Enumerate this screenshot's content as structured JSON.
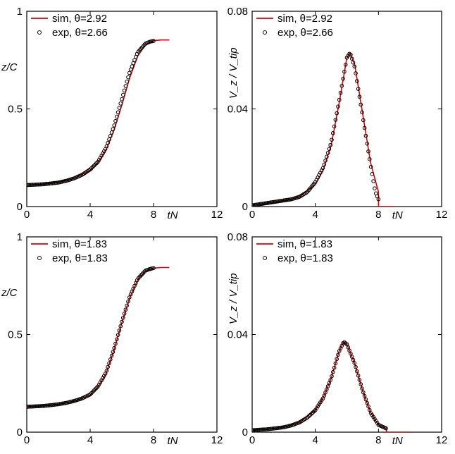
{
  "chart_data": [
    {
      "type": "line",
      "panel": "top-left",
      "xlabel": "tN",
      "ylabel": "z/C",
      "xlim": [
        0,
        12
      ],
      "ylim": [
        0,
        1
      ],
      "xticks": [
        "0",
        "4",
        "8",
        "12"
      ],
      "yticks": [
        "0",
        "0.5",
        "1"
      ],
      "legend_position": "top-left",
      "series": [
        {
          "name": "sim, θ=2.92",
          "style": "line",
          "color": "#e00000",
          "x": [
            0,
            1,
            2,
            3,
            4,
            4.5,
            5,
            5.5,
            6,
            6.5,
            7,
            7.5,
            8,
            8.5,
            9
          ],
          "y": [
            0.11,
            0.114,
            0.125,
            0.145,
            0.185,
            0.225,
            0.29,
            0.39,
            0.52,
            0.66,
            0.77,
            0.83,
            0.85,
            0.853,
            0.853
          ]
        },
        {
          "name": "exp, θ=2.66",
          "style": "markers",
          "color": "#000000",
          "x": [
            0,
            0.5,
            1,
            1.5,
            2,
            2.5,
            3,
            3.5,
            4,
            4.5,
            5,
            5.5,
            6,
            6.5,
            7,
            7.5,
            7.8,
            8
          ],
          "y": [
            0.11,
            0.112,
            0.114,
            0.118,
            0.123,
            0.132,
            0.145,
            0.163,
            0.19,
            0.23,
            0.3,
            0.41,
            0.55,
            0.69,
            0.79,
            0.835,
            0.845,
            0.848
          ]
        }
      ]
    },
    {
      "type": "line",
      "panel": "top-right",
      "xlabel": "tN",
      "ylabel": "V_z / V_tip",
      "xlim": [
        0,
        12
      ],
      "ylim": [
        0,
        0.08
      ],
      "xticks": [
        "0",
        "4",
        "8",
        "12"
      ],
      "yticks": [
        "0",
        "0.04",
        "0.08"
      ],
      "legend_position": "top-left",
      "series": [
        {
          "name": "sim, θ=2.92",
          "style": "line",
          "color": "#e00000",
          "x": [
            0,
            1,
            2,
            3,
            4,
            4.5,
            5,
            5.5,
            6,
            6.2,
            6.5,
            7,
            7.5,
            8,
            8.01,
            9
          ],
          "y": [
            0.0005,
            0.001,
            0.002,
            0.004,
            0.009,
            0.015,
            0.025,
            0.042,
            0.061,
            0.063,
            0.058,
            0.038,
            0.018,
            0.006,
            0,
            0
          ]
        },
        {
          "name": "exp, θ=2.66",
          "style": "markers",
          "color": "#000000",
          "x": [
            0,
            0.5,
            1,
            1.5,
            2,
            2.5,
            3,
            3.5,
            4,
            4.5,
            5,
            5.5,
            6,
            6.2,
            6.5,
            7,
            7.5,
            7.8,
            8
          ],
          "y": [
            0.0005,
            0.001,
            0.0015,
            0.002,
            0.0025,
            0.003,
            0.004,
            0.006,
            0.01,
            0.016,
            0.026,
            0.043,
            0.061,
            0.063,
            0.057,
            0.037,
            0.017,
            0.006,
            0.003
          ]
        }
      ]
    },
    {
      "type": "line",
      "panel": "bottom-left",
      "xlabel": "tN",
      "ylabel": "z/C",
      "xlim": [
        0,
        12
      ],
      "ylim": [
        0,
        1
      ],
      "xticks": [
        "0",
        "4",
        "8",
        "12"
      ],
      "yticks": [
        "0",
        "0.5",
        "1"
      ],
      "legend_position": "top-left",
      "series": [
        {
          "name": "sim, θ=1.83",
          "style": "line",
          "color": "#e00000",
          "x": [
            0,
            1,
            2,
            3,
            4,
            4.5,
            5,
            5.5,
            6,
            6.5,
            7,
            7.5,
            8,
            8.5,
            9
          ],
          "y": [
            0.13,
            0.134,
            0.142,
            0.158,
            0.19,
            0.23,
            0.3,
            0.42,
            0.56,
            0.69,
            0.78,
            0.825,
            0.84,
            0.843,
            0.843
          ]
        },
        {
          "name": "exp, θ=1.83",
          "style": "markers",
          "color": "#000000",
          "x": [
            0,
            0.5,
            1,
            1.5,
            2,
            2.5,
            3,
            3.5,
            4,
            4.5,
            5,
            5.5,
            6,
            6.5,
            7,
            7.5,
            7.8,
            8
          ],
          "y": [
            0.13,
            0.132,
            0.134,
            0.138,
            0.143,
            0.15,
            0.16,
            0.173,
            0.193,
            0.235,
            0.305,
            0.425,
            0.565,
            0.695,
            0.785,
            0.828,
            0.836,
            0.84
          ]
        }
      ]
    },
    {
      "type": "line",
      "panel": "bottom-right",
      "xlabel": "tN",
      "ylabel": "V_z / V_tip",
      "xlim": [
        0,
        12
      ],
      "ylim": [
        0,
        0.08
      ],
      "xticks": [
        "0",
        "4",
        "8",
        "12"
      ],
      "yticks": [
        "0",
        "0.04",
        "0.08"
      ],
      "legend_position": "top-left",
      "series": [
        {
          "name": "sim, θ=1.83",
          "style": "line",
          "color": "#e00000",
          "x": [
            0,
            1,
            2,
            3,
            4,
            4.5,
            5,
            5.5,
            5.8,
            6,
            6.5,
            7,
            7.5,
            8,
            8.5,
            8.51,
            10
          ],
          "y": [
            0.0008,
            0.0012,
            0.002,
            0.004,
            0.009,
            0.014,
            0.022,
            0.033,
            0.037,
            0.036,
            0.028,
            0.017,
            0.008,
            0.003,
            0.0015,
            0,
            0
          ]
        },
        {
          "name": "exp, θ=1.83",
          "style": "markers",
          "color": "#000000",
          "x": [
            0,
            0.5,
            1,
            1.5,
            2,
            2.5,
            3,
            3.5,
            4,
            4.5,
            5,
            5.5,
            5.8,
            6,
            6.5,
            7,
            7.5,
            8,
            8.5
          ],
          "y": [
            0.0008,
            0.001,
            0.0012,
            0.0016,
            0.002,
            0.0028,
            0.004,
            0.006,
            0.009,
            0.014,
            0.022,
            0.033,
            0.037,
            0.036,
            0.028,
            0.017,
            0.008,
            0.003,
            0.0015
          ]
        }
      ]
    }
  ]
}
